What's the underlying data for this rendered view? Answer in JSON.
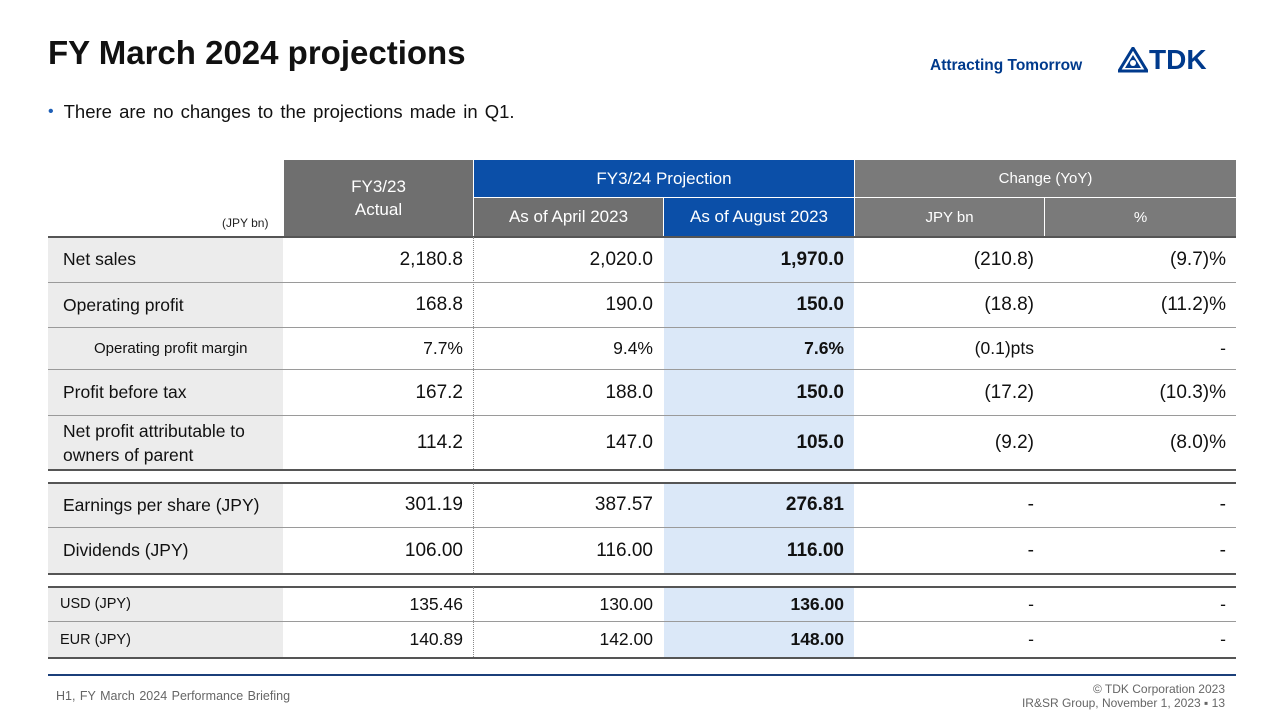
{
  "title": "FY March 2024 projections",
  "brand_tagline": "Attracting Tomorrow",
  "logo_text": "TDK",
  "bullet": "There are no changes to the projections made in Q1.",
  "table": {
    "unit": "(JPY bn)",
    "headers": {
      "actual": "FY3/23\nActual",
      "actual_line1": "FY3/23",
      "actual_line2": "Actual",
      "projection": "FY3/24 Projection",
      "april": "As of April 2023",
      "august": "As of August 2023",
      "change": "Change  (YoY)",
      "change_jpy": "JPY bn",
      "change_pct": "%"
    },
    "rows": [
      {
        "label": "Net sales",
        "actual": "2,180.8",
        "april": "2,020.0",
        "august": "1,970.0",
        "chg_jpy": "(210.8)",
        "chg_pct": "(9.7)%"
      },
      {
        "label": "Operating profit",
        "actual": "168.8",
        "april": "190.0",
        "august": "150.0",
        "chg_jpy": "(18.8)",
        "chg_pct": "(11.2)%"
      },
      {
        "label": "Operating profit margin",
        "actual": "7.7%",
        "april": "9.4%",
        "august": "7.6%",
        "chg_jpy": "(0.1)pts",
        "chg_pct": "-"
      },
      {
        "label": "Profit before tax",
        "actual": "167.2",
        "april": "188.0",
        "august": "150.0",
        "chg_jpy": "(17.2)",
        "chg_pct": "(10.3)%"
      },
      {
        "label_line1": "Net profit attributable to",
        "label_line2": "owners of parent",
        "actual": "114.2",
        "april": "147.0",
        "august": "105.0",
        "chg_jpy": "(9.2)",
        "chg_pct": "(8.0)%"
      },
      {
        "label": "Earnings per share (JPY)",
        "actual": "301.19",
        "april": "387.57",
        "august": "276.81",
        "chg_jpy": "-",
        "chg_pct": "-"
      },
      {
        "label": "Dividends (JPY)",
        "actual": "106.00",
        "april": "116.00",
        "august": "116.00",
        "chg_jpy": "-",
        "chg_pct": "-"
      },
      {
        "label": "USD (JPY)",
        "actual": "135.46",
        "april": "130.00",
        "august": "136.00",
        "chg_jpy": "-",
        "chg_pct": "-"
      },
      {
        "label": "EUR (JPY)",
        "actual": "140.89",
        "april": "142.00",
        "august": "148.00",
        "chg_jpy": "-",
        "chg_pct": "-"
      }
    ]
  },
  "footer": {
    "left": "H1, FY March 2024 Performance Briefing",
    "copyright": "© TDK Corporation 2023",
    "dept": "IR&SR Group, November 1, 2023",
    "page": "13"
  },
  "colors": {
    "brand_blue": "#003a8c",
    "header_blue": "#0b4fa8",
    "header_gray": "#6f6f6f",
    "highlight": "#dbe8f8"
  }
}
